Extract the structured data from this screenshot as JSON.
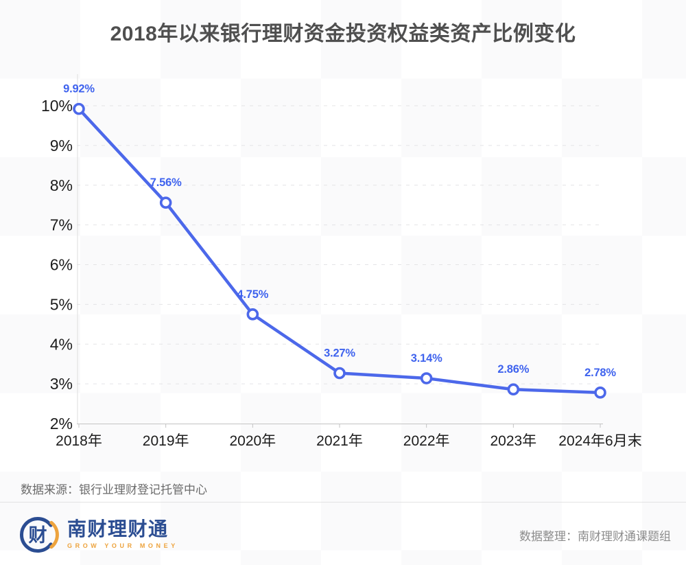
{
  "title": "2018年以来银行理财资金投资权益类资产比例变化",
  "chart_data": {
    "type": "line",
    "categories": [
      "2018年",
      "2019年",
      "2020年",
      "2021年",
      "2022年",
      "2023年",
      "2024年6月末"
    ],
    "values": [
      9.92,
      7.56,
      4.75,
      3.27,
      3.14,
      2.86,
      2.78
    ],
    "point_labels": [
      "9.92%",
      "7.56%",
      "4.75%",
      "3.27%",
      "3.14%",
      "2.86%",
      "2.78%"
    ],
    "yticks": [
      2,
      3,
      4,
      5,
      6,
      7,
      8,
      9,
      10
    ],
    "ytick_labels": [
      "2%",
      "3%",
      "4%",
      "5%",
      "6%",
      "7%",
      "8%",
      "9%",
      "10%"
    ],
    "ylim": [
      2,
      10
    ],
    "title": "2018年以来银行理财资金投资权益类资产比例变化",
    "xlabel": "",
    "ylabel": "",
    "grid": true,
    "grid_style": "dashed",
    "legend": "none",
    "line_color": "#4c68ea",
    "label_color": "#3f63ee",
    "marker": "open-circle-white-fill"
  },
  "source_note": "数据来源：银行业理财登记托管中心",
  "footer": {
    "logo_glyph": "财",
    "logo_text": "南财理财通",
    "logo_slogan": "GROW YOUR MONEY",
    "credit": "数据整理：南财理财通课题组"
  },
  "colors": {
    "line": "#4c68ea",
    "data_label": "#3f63ee",
    "axis_text": "#1c1c1c",
    "grid_line": "#e4e4e6",
    "y_axis_line": "#dedede",
    "x_axis_line": "#c3c3c3",
    "title_text": "#4f4f4f",
    "source_text": "#6b6b6b",
    "credit_text": "#8c8c8c",
    "brand_blue": "#2b4d92",
    "brand_orange": "#eda33d"
  }
}
